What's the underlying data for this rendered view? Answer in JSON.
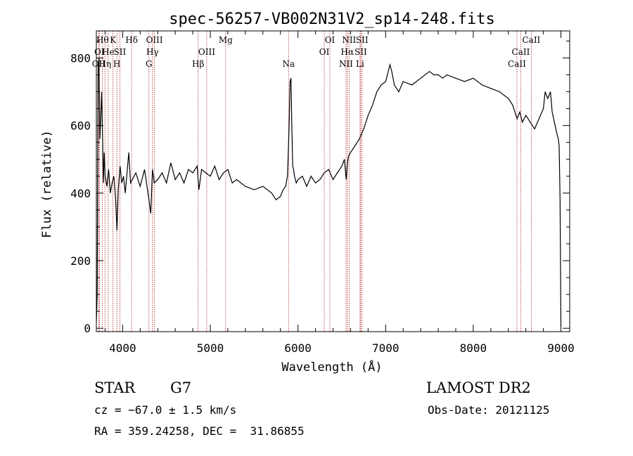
{
  "chart_data": {
    "type": "line",
    "title": "spec-56257-VB002N31V2_sp14-248.fits",
    "xlabel": "Wavelength (Å)",
    "ylabel": "Flux (relative)",
    "xlim": [
      3700,
      9100
    ],
    "ylim": [
      -10,
      880
    ],
    "xticks": [
      4000,
      5000,
      6000,
      7000,
      8000,
      9000
    ],
    "yticks": [
      0,
      200,
      400,
      600,
      800
    ],
    "grid": false,
    "legend": "none",
    "line_color": "#000000",
    "marker_color": "#b22222",
    "series": [
      {
        "x": [
          3700,
          3710,
          3720,
          3730,
          3740,
          3750,
          3760,
          3770,
          3780,
          3790,
          3800,
          3820,
          3840,
          3860,
          3880,
          3900,
          3920,
          3935,
          3950,
          3970,
          3990,
          4010,
          4030,
          4050,
          4070,
          4090,
          4110,
          4150,
          4200,
          4250,
          4300,
          4320,
          4340,
          4360,
          4400,
          4450,
          4500,
          4550,
          4600,
          4650,
          4700,
          4750,
          4800,
          4850,
          4870,
          4900,
          4950,
          5000,
          5050,
          5100,
          5150,
          5200,
          5250,
          5300,
          5400,
          5500,
          5600,
          5700,
          5750,
          5800,
          5830,
          5860,
          5880,
          5890,
          5900,
          5910,
          5920,
          5930,
          5940,
          5950,
          5960,
          5980,
          6000,
          6050,
          6100,
          6150,
          6200,
          6250,
          6300,
          6350,
          6400,
          6450,
          6500,
          6530,
          6550,
          6562,
          6570,
          6580,
          6600,
          6650,
          6700,
          6750,
          6800,
          6850,
          6900,
          6950,
          7000,
          7050,
          7070,
          7100,
          7150,
          7200,
          7300,
          7400,
          7500,
          7550,
          7600,
          7650,
          7700,
          7800,
          7900,
          8000,
          8100,
          8200,
          8300,
          8400,
          8450,
          8500,
          8530,
          8560,
          8600,
          8650,
          8700,
          8750,
          8800,
          8820,
          8850,
          8880,
          8900,
          8950,
          8970,
          8980,
          8990,
          9000
        ],
        "y": [
          20,
          100,
          780,
          800,
          560,
          620,
          700,
          580,
          430,
          520,
          450,
          420,
          470,
          400,
          430,
          450,
          380,
          290,
          410,
          480,
          430,
          450,
          400,
          460,
          520,
          430,
          440,
          460,
          420,
          470,
          380,
          340,
          470,
          430,
          440,
          460,
          430,
          490,
          440,
          460,
          430,
          470,
          460,
          480,
          410,
          470,
          460,
          450,
          480,
          440,
          460,
          470,
          430,
          440,
          420,
          410,
          420,
          400,
          380,
          390,
          410,
          420,
          450,
          520,
          610,
          730,
          740,
          600,
          480,
          470,
          450,
          430,
          440,
          450,
          420,
          450,
          430,
          440,
          460,
          470,
          440,
          460,
          480,
          500,
          440,
          480,
          500,
          510,
          520,
          540,
          560,
          590,
          630,
          660,
          700,
          720,
          730,
          780,
          760,
          720,
          700,
          730,
          720,
          740,
          760,
          750,
          750,
          740,
          750,
          740,
          730,
          740,
          720,
          710,
          700,
          680,
          660,
          620,
          640,
          610,
          630,
          610,
          590,
          620,
          650,
          700,
          680,
          700,
          640,
          580,
          560,
          540,
          380,
          5
        ]
      }
    ],
    "lines": [
      {
        "x": 3727,
        "label": "OII",
        "row": 2
      },
      {
        "x": 3734,
        "label": "OI",
        "row": 1
      },
      {
        "x": 3770,
        "label": "Hθ",
        "row": 0
      },
      {
        "x": 3798,
        "label": "Hη",
        "row": 2
      },
      {
        "x": 3835,
        "label": "He",
        "row": 1
      },
      {
        "x": 3889,
        "label": "K",
        "row": 0
      },
      {
        "x": 3934,
        "label": "H",
        "row": 2
      },
      {
        "x": 3968,
        "label": "SII",
        "row": 1
      },
      {
        "x": 4102,
        "label": "Hδ",
        "row": 0
      },
      {
        "x": 4300,
        "label": "G",
        "row": 2
      },
      {
        "x": 4340,
        "label": "Hγ",
        "row": 1
      },
      {
        "x": 4363,
        "label": "OIII",
        "row": 0
      },
      {
        "x": 4861,
        "label": "Hβ",
        "row": 2
      },
      {
        "x": 4959,
        "label": "OIII",
        "row": 1
      },
      {
        "x": 5175,
        "label": "Mg",
        "row": 0
      },
      {
        "x": 5893,
        "label": "Na",
        "row": 2
      },
      {
        "x": 6300,
        "label": "OI",
        "row": 1
      },
      {
        "x": 6364,
        "label": "OI",
        "row": 0
      },
      {
        "x": 6548,
        "label": "NII",
        "row": 2
      },
      {
        "x": 6563,
        "label": "Hα",
        "row": 1
      },
      {
        "x": 6583,
        "label": "NII",
        "row": 0
      },
      {
        "x": 6708,
        "label": "Li",
        "row": 2
      },
      {
        "x": 6716,
        "label": "SII",
        "row": 1
      },
      {
        "x": 6731,
        "label": "SII",
        "row": 0
      },
      {
        "x": 8498,
        "label": "CaII",
        "row": 2
      },
      {
        "x": 8542,
        "label": "CaII",
        "row": 1
      },
      {
        "x": 8662,
        "label": "CaII",
        "row": 0
      }
    ]
  },
  "info": {
    "class": "STAR",
    "subclass": "G7",
    "survey": "LAMOST DR2",
    "cz": "cz = −67.0 ± 1.5 km/s",
    "obs_date": "Obs-Date: 20121125",
    "coords": "RA = 359.24258, DEC =  31.86855"
  }
}
